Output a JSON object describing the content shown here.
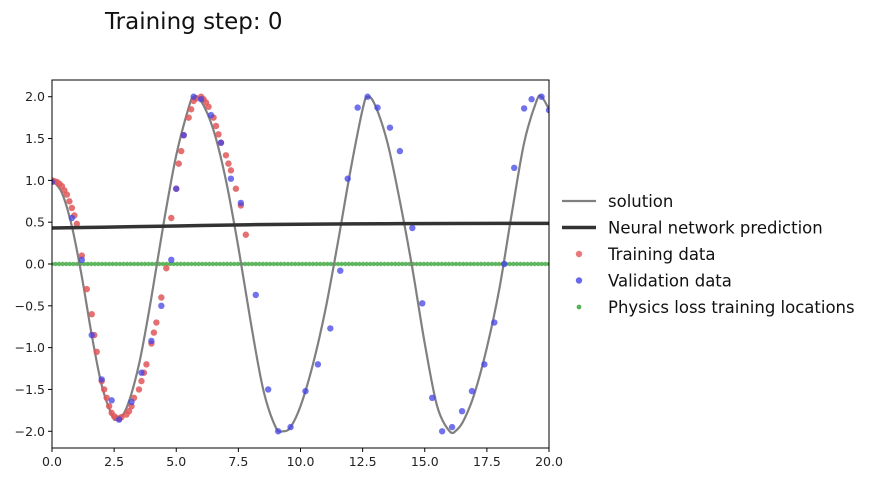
{
  "chart_data": {
    "type": "line",
    "title": "Training step: 0",
    "xlabel": "",
    "ylabel": "",
    "xlim": [
      0,
      20
    ],
    "ylim": [
      -2.2,
      2.2
    ],
    "xticks": [
      "0.0",
      "2.5",
      "5.0",
      "7.5",
      "10.0",
      "12.5",
      "15.0",
      "17.5",
      "20.0"
    ],
    "yticks": [
      "-2.0",
      "-1.5",
      "-1.0",
      "-0.5",
      "0.0",
      "0.5",
      "1.0",
      "1.5",
      "2.0"
    ],
    "grid": false,
    "legend_placement": "right, outside axes",
    "legend": [
      "solution",
      "Neural network prediction",
      "Training data",
      "Validation data",
      "Physics loss training locations"
    ],
    "series": [
      {
        "name": "solution",
        "kind": "line",
        "color": "#808080",
        "x": [
          0.0,
          0.4,
          0.8,
          1.2,
          1.6,
          2.0,
          2.4,
          2.6,
          3.0,
          3.5,
          4.0,
          4.5,
          5.0,
          5.5,
          5.7,
          6.0,
          6.5,
          7.0,
          7.5,
          8.0,
          8.5,
          9.0,
          9.3,
          9.6,
          10.0,
          10.5,
          11.0,
          11.5,
          12.0,
          12.5,
          12.7,
          13.0,
          13.5,
          14.0,
          14.5,
          15.0,
          15.5,
          16.0,
          16.3,
          16.6,
          17.0,
          17.5,
          18.0,
          18.5,
          19.0,
          19.5,
          19.7,
          20.0
        ],
        "y": [
          1.0,
          0.85,
          0.45,
          -0.15,
          -0.85,
          -1.45,
          -1.8,
          -1.86,
          -1.72,
          -1.2,
          -0.4,
          0.5,
          1.3,
          1.87,
          2.0,
          1.95,
          1.6,
          1.0,
          0.2,
          -0.7,
          -1.5,
          -1.95,
          -2.0,
          -1.95,
          -1.7,
          -1.2,
          -0.55,
          0.25,
          1.1,
          1.85,
          2.0,
          1.9,
          1.45,
          0.75,
          -0.05,
          -0.95,
          -1.7,
          -2.0,
          -1.98,
          -1.85,
          -1.55,
          -1.0,
          -0.3,
          0.6,
          1.45,
          1.95,
          2.0,
          1.85
        ]
      },
      {
        "name": "Neural network prediction",
        "kind": "line",
        "color": "#333333",
        "x": [
          0,
          2,
          4,
          6,
          8,
          10,
          12,
          14,
          16,
          18,
          20
        ],
        "y": [
          0.43,
          0.44,
          0.45,
          0.46,
          0.47,
          0.475,
          0.48,
          0.482,
          0.484,
          0.485,
          0.485
        ]
      },
      {
        "name": "Training data",
        "kind": "scatter",
        "color": "#e15759",
        "x": [
          0.0,
          0.1,
          0.2,
          0.3,
          0.4,
          0.5,
          0.6,
          0.7,
          0.8,
          0.9,
          1.0,
          1.2,
          1.4,
          1.6,
          1.7,
          1.8,
          2.0,
          2.1,
          2.2,
          2.3,
          2.4,
          2.5,
          2.6,
          2.7,
          2.8,
          3.0,
          3.1,
          3.2,
          3.3,
          3.5,
          3.6,
          3.7,
          3.8,
          4.0,
          4.1,
          4.2,
          4.4,
          4.6,
          4.8,
          5.0,
          5.1,
          5.2,
          5.3,
          5.5,
          5.6,
          5.7,
          5.8,
          6.0,
          6.1,
          6.2,
          6.3,
          6.5,
          6.6,
          6.7,
          6.8,
          7.0,
          7.1,
          7.2,
          7.4,
          7.6,
          7.8
        ],
        "y": [
          1.0,
          0.99,
          0.98,
          0.96,
          0.93,
          0.88,
          0.83,
          0.75,
          0.67,
          0.58,
          0.48,
          0.1,
          -0.3,
          -0.6,
          -0.85,
          -1.05,
          -1.4,
          -1.5,
          -1.6,
          -1.7,
          -1.78,
          -1.82,
          -1.84,
          -1.85,
          -1.83,
          -1.8,
          -1.76,
          -1.7,
          -1.6,
          -1.5,
          -1.4,
          -1.3,
          -1.2,
          -0.95,
          -0.82,
          -0.7,
          -0.4,
          -0.05,
          0.55,
          0.9,
          1.2,
          1.35,
          1.54,
          1.75,
          1.85,
          1.95,
          1.98,
          2.0,
          1.97,
          1.93,
          1.88,
          1.75,
          1.65,
          1.55,
          1.45,
          1.3,
          1.2,
          1.12,
          0.9,
          0.7,
          0.35
        ]
      },
      {
        "name": "Validation data",
        "kind": "scatter",
        "color": "#4343e6",
        "x": [
          0.0,
          0.8,
          1.2,
          1.6,
          2.0,
          2.4,
          2.7,
          3.2,
          3.6,
          4.0,
          4.4,
          4.8,
          5.0,
          5.3,
          5.7,
          6.0,
          6.4,
          6.8,
          7.2,
          7.6,
          8.2,
          8.7,
          9.1,
          9.6,
          10.2,
          10.7,
          11.2,
          11.6,
          11.9,
          12.3,
          12.7,
          13.1,
          13.6,
          14.0,
          14.5,
          14.9,
          15.3,
          15.7,
          16.1,
          16.5,
          16.9,
          17.4,
          17.8,
          18.2,
          18.6,
          19.0,
          19.3,
          19.7,
          20.0
        ],
        "y": [
          0.98,
          0.55,
          0.05,
          -0.85,
          -1.38,
          -1.63,
          -1.86,
          -1.65,
          -1.3,
          -0.92,
          -0.5,
          0.05,
          0.9,
          1.54,
          2.0,
          1.97,
          1.78,
          1.45,
          1.02,
          0.73,
          -0.37,
          -1.5,
          -2.0,
          -1.95,
          -1.52,
          -1.2,
          -0.77,
          -0.08,
          1.02,
          1.87,
          2.0,
          1.87,
          1.63,
          1.35,
          0.43,
          -0.47,
          -1.6,
          -2.0,
          -1.95,
          -1.76,
          -1.52,
          -1.2,
          -0.7,
          0.0,
          1.15,
          1.86,
          1.97,
          2.0,
          1.84
        ]
      },
      {
        "name": "Physics loss training locations",
        "kind": "scatter",
        "color": "#2ca02c",
        "x_range": [
          0,
          20
        ],
        "count": 140,
        "y": 0.0
      }
    ]
  }
}
